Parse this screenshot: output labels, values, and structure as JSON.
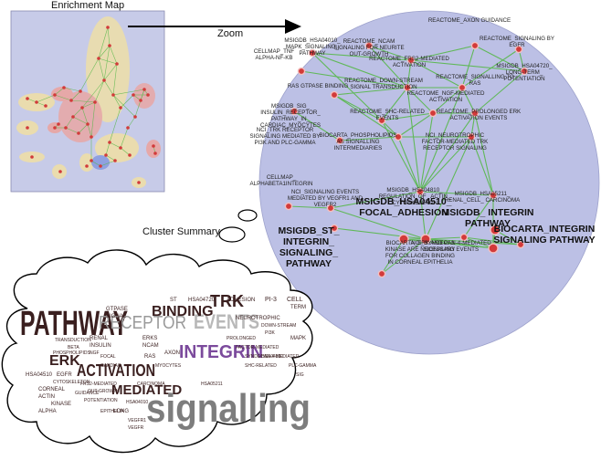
{
  "captions": {
    "enrichment_map": "Enrichment Map",
    "zoom": "Zoom",
    "cluster_summary": "Cluster Summary"
  },
  "colors": {
    "map_background": "#c7cbe8",
    "zoom_ellipse": "#bcc0e5",
    "edge_green": "#57b84a",
    "node_red": "#d23a3a",
    "cluster_tan": "#eadcae",
    "cluster_pink": "#e6a8a8",
    "word_dark": "#3a1f1f",
    "word_purple": "#7b4a9c",
    "word_gray": "#7d7d7d"
  },
  "zoom_labels": [
    "MSIGDB_HSA04010_ MAPK_SIGNALING_ PATHWAY",
    "REACTOME_NCAM SIGNALING FOR NEURITE OUT-GROWTH",
    "REACTOME_AXON GUIDANCE",
    "REACTOME_SIGNALING BY EGFR",
    "CELLMAP_TNF ALPHA-NF-KB",
    "REACTOME_FRS2-MEDIATED ACTIVATION",
    "MSIGDB_HSA04720_ LONG-TERM_ POTENTIATION",
    "RAS GTPASE BINDING",
    "REACTOME_DOWN-STREAM SIGNAL TRANSDUCTION",
    "REACTOME_SIGNALLING TO RAS",
    "MSIGDB_SIG_ INSULIN_RECEPTOR_ PATHWAY_IN_ CARDIAC_MYOCYTES",
    "REACTOME_NGF-MEDIATED ACTIVATION",
    "REACTOME_PROLONGED ERK ACTIVATION EVENTS",
    "REACTOME_SHC-RELATED EVENTS",
    "NCI_TRK RECEPTOR SIGNALING MEDIATED BY PI3K AND PLC-GAMMA",
    "BIOCARTA_PHOSPHOLIPIDS AS SIGNALLING INTERMEDIARIES",
    "NCI_NEUROTROPHIC FACTOR-MEDIATED TRK RECEPTOR SIGNALING",
    "MSIGDB_HSA04810_ REGULATION_OF_ ACTIN_ CYTOSKELETON",
    "MSIGDB_HSA05211_ RENAL_CELL_ CARCINOMA",
    "CELLMAP_ ALPHABETA1INTEGRIN",
    "NCI_SIGNALING EVENTS MEDIATED BY VEGFR1 AND VEGFR2",
    "BIOCARTA_ERK AND PI-3 KINASE ARE NECESSARY FOR COLLAGEN BINDING IN CORNEAL EPITHELIA",
    "NCI_SYNDECAN-4-MEDIATED SIGNALING EVENTS"
  ],
  "zoom_big_labels": [
    "MSIGDB_ INTEGRIN PATHWAY",
    "MSIGDB_HSA04510_ FOCAL_ADHESION",
    "MSIGDB_ST_ INTEGRIN_ SIGNALING_ PATHWAY",
    "BIOCARTA_INTEGRIN SIGNALING PATHWAY"
  ],
  "cloud_words": [
    {
      "t": "PATHWAY",
      "c": "#3a1f1f"
    },
    {
      "t": "RECEPTOR",
      "c": "#9a9a9a"
    },
    {
      "t": "EVENTS",
      "c": "#b8b8b8"
    },
    {
      "t": "BINDING",
      "c": "#3a1f1f"
    },
    {
      "t": "TRK",
      "c": "#3a1f1f"
    },
    {
      "t": "INTEGRIN",
      "c": "#7b4a9c"
    },
    {
      "t": "ACTIVATION",
      "c": "#3a1f1f"
    },
    {
      "t": "ERK",
      "c": "#3a1f1f"
    },
    {
      "t": "MEDIATED",
      "c": "#3a1f1f"
    },
    {
      "t": "signalling",
      "c": "#7d7d7d"
    },
    {
      "t": "ADHESION",
      "c": "#3a1f1f"
    },
    {
      "t": "PI-3",
      "c": "#3a1f1f"
    },
    {
      "t": "CELL",
      "c": "#3a1f1f"
    },
    {
      "t": "TERM",
      "c": "#3a1f1f"
    },
    {
      "t": "NEUROTROPHIC",
      "c": "#3a1f1f"
    },
    {
      "t": "DOWN-STREAM",
      "c": "#3a1f1f"
    },
    {
      "t": "FACTOR-MEDIATED",
      "c": "#3a1f1f"
    },
    {
      "t": "SYNDECAN-4-MEDIATED",
      "c": "#3a1f1f"
    },
    {
      "t": "SHC-RELATED",
      "c": "#3a1f1f"
    },
    {
      "t": "HSA04810",
      "c": "#3a1f1f"
    },
    {
      "t": "GTPASE",
      "c": "#3a1f1f"
    },
    {
      "t": "SIGNAL",
      "c": "#3a1f1f"
    },
    {
      "t": "HSA04720",
      "c": "#3a1f1f"
    },
    {
      "t": "RENAL",
      "c": "#3a1f1f"
    },
    {
      "t": "INSULIN",
      "c": "#3a1f1f"
    },
    {
      "t": "NGF",
      "c": "#3a1f1f"
    },
    {
      "t": "ERKS",
      "c": "#3a1f1f"
    },
    {
      "t": "NCAM",
      "c": "#3a1f1f"
    },
    {
      "t": "AXON",
      "c": "#3a1f1f"
    },
    {
      "t": "FRS2-MEDIATED",
      "c": "#3a1f1f"
    },
    {
      "t": "CORNEAL",
      "c": "#3a1f1f"
    },
    {
      "t": "GUIDANCE",
      "c": "#3a1f1f"
    },
    {
      "t": "POTENTIATION",
      "c": "#3a1f1f"
    },
    {
      "t": "ACTIN",
      "c": "#3a1f1f"
    },
    {
      "t": "KINASE",
      "c": "#3a1f1f"
    },
    {
      "t": "ALPHA",
      "c": "#3a1f1f"
    },
    {
      "t": "HSA04510",
      "c": "#3a1f1f"
    },
    {
      "t": "LONG",
      "c": "#3a1f1f"
    },
    {
      "t": "VEGFR1",
      "c": "#3a1f1f"
    },
    {
      "t": "HSA04010",
      "c": "#3a1f1f"
    },
    {
      "t": "PLC-GAMMA",
      "c": "#3a1f1f"
    },
    {
      "t": "MAPK",
      "c": "#3a1f1f"
    },
    {
      "t": "PROLONGED",
      "c": "#3a1f1f"
    },
    {
      "t": "CARCINOMA",
      "c": "#3a1f1f"
    },
    {
      "t": "MYOCYTES",
      "c": "#3a1f1f"
    },
    {
      "t": "BETA",
      "c": "#3a1f1f"
    },
    {
      "t": "RAS",
      "c": "#3a1f1f"
    },
    {
      "t": "PI3K",
      "c": "#3a1f1f"
    },
    {
      "t": "SIG",
      "c": "#3a1f1f"
    },
    {
      "t": "EPITHELIA",
      "c": "#3a1f1f"
    },
    {
      "t": "EGFR",
      "c": "#3a1f1f"
    },
    {
      "t": "HSA05211",
      "c": "#3a1f1f"
    },
    {
      "t": "ST",
      "c": "#3a1f1f"
    },
    {
      "t": "TRANSDUCTION",
      "c": "#3a1f1f"
    },
    {
      "t": "PHOSPHOLIPIDS",
      "c": "#3a1f1f"
    },
    {
      "t": "CARDIAC",
      "c": "#3a1f1f"
    },
    {
      "t": "CYTOSKELETON",
      "c": "#3a1f1f"
    },
    {
      "t": "VEGFR",
      "c": "#3a1f1f"
    },
    {
      "t": "FOCAL",
      "c": "#3a1f1f"
    },
    {
      "t": "OUT-GROWTH",
      "c": "#3a1f1f"
    }
  ]
}
